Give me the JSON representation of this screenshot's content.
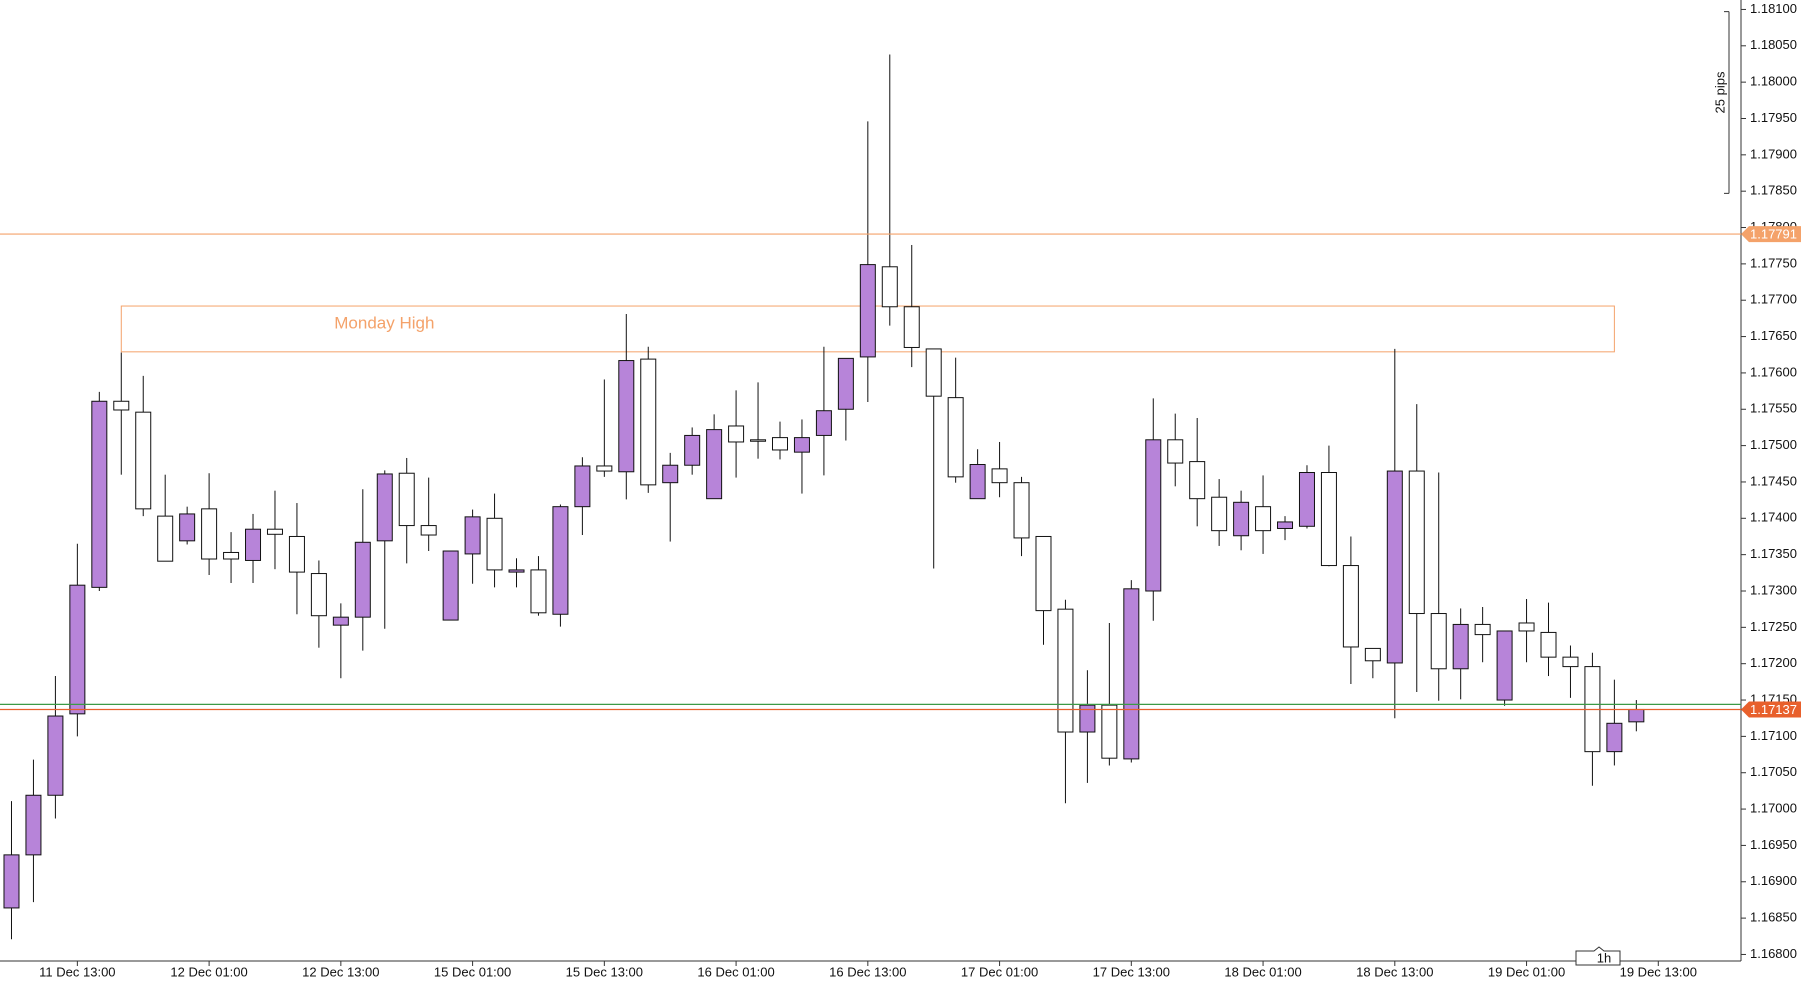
{
  "chart_data": {
    "type": "candlestick",
    "timeframe": "1h",
    "categories": [
      null,
      null,
      null,
      "11 Dec 13:00",
      null,
      null,
      null,
      null,
      null,
      "12 Dec 01:00",
      null,
      null,
      null,
      null,
      null,
      "12 Dec 13:00",
      null,
      null,
      null,
      null,
      null,
      "15 Dec 01:00",
      null,
      null,
      null,
      null,
      null,
      "15 Dec 13:00",
      null,
      null,
      null,
      null,
      null,
      "16 Dec 01:00",
      null,
      null,
      null,
      null,
      null,
      "16 Dec 13:00",
      null,
      null,
      null,
      null,
      null,
      "17 Dec 01:00",
      null,
      null,
      null,
      null,
      null,
      "17 Dec 13:00",
      null,
      null,
      null,
      null,
      null,
      "18 Dec 01:00",
      null,
      null,
      null,
      null,
      null,
      "18 Dec 13:00",
      null,
      null,
      null,
      null,
      null,
      "19 Dec 01:00",
      null,
      null,
      null,
      null,
      null,
      "19 Dec 13:00"
    ],
    "open": [
      1.16864,
      1.16937,
      1.17019,
      1.17131,
      1.17305,
      1.17561,
      1.17546,
      1.17403,
      1.17369,
      1.17413,
      1.17353,
      1.17342,
      1.17385,
      1.17375,
      1.17324,
      1.17253,
      1.17264,
      1.17369,
      1.17462,
      1.1739,
      1.1726,
      1.17351,
      1.174,
      1.17326,
      1.17329,
      1.17268,
      1.17416,
      1.17472,
      1.17464,
      1.17619,
      1.17449,
      1.17473,
      1.17427,
      1.17527,
      1.17508,
      1.17511,
      1.17491,
      1.17514,
      1.1755,
      1.17622,
      1.17746,
      1.17691,
      1.17633,
      1.17566,
      1.17427,
      1.17468,
      1.17449,
      1.17375,
      1.17275,
      1.17106,
      1.17143,
      1.17069,
      1.173,
      1.17508,
      1.17478,
      1.17429,
      1.17376,
      1.17416,
      1.17386,
      1.17389,
      1.17463,
      1.17335,
      1.17221,
      1.17201,
      1.17465,
      1.17269,
      1.17193,
      1.17254,
      1.1715,
      1.17256,
      1.17243,
      1.17209,
      1.17196,
      1.17079,
      1.1712,
      null
    ],
    "high": [
      1.17011,
      1.17068,
      1.17183,
      1.17365,
      1.17574,
      1.17628,
      1.17596,
      1.1746,
      1.17416,
      1.17462,
      1.17381,
      1.17406,
      1.17438,
      1.17421,
      1.17342,
      1.17283,
      1.1744,
      1.17466,
      1.17483,
      1.17456,
      1.17355,
      1.17412,
      1.17434,
      1.17345,
      1.17348,
      1.17419,
      1.17484,
      1.17591,
      1.17681,
      1.17636,
      1.1749,
      1.17525,
      1.17543,
      1.17576,
      1.17587,
      1.17533,
      1.17536,
      1.17636,
      1.1762,
      1.17946,
      1.18038,
      1.17776,
      1.17633,
      1.17621,
      1.17495,
      1.17505,
      1.17457,
      1.17375,
      1.17288,
      1.17191,
      1.17256,
      1.17315,
      1.17565,
      1.17544,
      1.17538,
      1.17454,
      1.17438,
      1.17459,
      1.17403,
      1.17473,
      1.175,
      1.17375,
      1.17221,
      1.17633,
      1.17557,
      1.17463,
      1.17276,
      1.17278,
      1.17245,
      1.17289,
      1.17284,
      1.17225,
      1.17215,
      1.17178,
      1.1715,
      null
    ],
    "low": [
      1.16821,
      1.16872,
      1.16987,
      1.171,
      1.173,
      1.1746,
      1.17403,
      1.17341,
      1.17364,
      1.17322,
      1.17311,
      1.17311,
      1.1733,
      1.17268,
      1.17222,
      1.1718,
      1.17218,
      1.17248,
      1.17338,
      1.17355,
      1.1726,
      1.1731,
      1.17305,
      1.17305,
      1.17266,
      1.17251,
      1.17377,
      1.17457,
      1.17426,
      1.17435,
      1.17368,
      1.1746,
      1.17427,
      1.17456,
      1.17482,
      1.17481,
      1.17434,
      1.17459,
      1.17507,
      1.1756,
      1.17665,
      1.17608,
      1.17331,
      1.17449,
      1.17427,
      1.17429,
      1.17348,
      1.17226,
      1.17008,
      1.17036,
      1.1706,
      1.17064,
      1.17259,
      1.17444,
      1.17389,
      1.17362,
      1.17356,
      1.17351,
      1.1737,
      1.17386,
      1.17334,
      1.17172,
      1.1718,
      1.17125,
      1.17161,
      1.17149,
      1.17151,
      1.17202,
      1.17142,
      1.17202,
      1.17183,
      1.17153,
      1.17032,
      1.1706,
      1.17107,
      null
    ],
    "close": [
      1.16937,
      1.17019,
      1.17128,
      1.17308,
      1.17561,
      1.17549,
      1.17413,
      1.17341,
      1.17406,
      1.17344,
      1.17344,
      1.17385,
      1.17378,
      1.17326,
      1.17266,
      1.17264,
      1.17367,
      1.17461,
      1.1739,
      1.17377,
      1.17355,
      1.17402,
      1.17329,
      1.17329,
      1.1727,
      1.17416,
      1.17472,
      1.17465,
      1.17617,
      1.17446,
      1.17473,
      1.17514,
      1.17522,
      1.17505,
      1.17506,
      1.17494,
      1.17511,
      1.17548,
      1.1762,
      1.17749,
      1.17691,
      1.17635,
      1.17568,
      1.17457,
      1.17474,
      1.17449,
      1.17373,
      1.17273,
      1.17106,
      1.17143,
      1.1707,
      1.17303,
      1.17508,
      1.17476,
      1.17427,
      1.17383,
      1.17422,
      1.17383,
      1.17395,
      1.17463,
      1.17335,
      1.17223,
      1.17204,
      1.17465,
      1.17269,
      1.17193,
      1.17254,
      1.1724,
      1.17245,
      1.17245,
      1.17209,
      1.17196,
      1.17079,
      1.17118,
      1.17137,
      null
    ],
    "up_color": "#b784d9",
    "down_color": "#ffffff",
    "ylim": [
      1.16791,
      1.18113
    ],
    "yticks": [
      {
        "value": 1.168,
        "label": "1.16800"
      },
      {
        "value": 1.1685,
        "label": "1.16850"
      },
      {
        "value": 1.169,
        "label": "1.16900"
      },
      {
        "value": 1.1695,
        "label": "1.16950"
      },
      {
        "value": 1.17,
        "label": "1.17000"
      },
      {
        "value": 1.1705,
        "label": "1.17050"
      },
      {
        "value": 1.171,
        "label": "1.17100"
      },
      {
        "value": 1.1715,
        "label": "1.17150"
      },
      {
        "value": 1.172,
        "label": "1.17200"
      },
      {
        "value": 1.1725,
        "label": "1.17250"
      },
      {
        "value": 1.173,
        "label": "1.17300"
      },
      {
        "value": 1.1735,
        "label": "1.17350"
      },
      {
        "value": 1.174,
        "label": "1.17400"
      },
      {
        "value": 1.1745,
        "label": "1.17450"
      },
      {
        "value": 1.175,
        "label": "1.17500"
      },
      {
        "value": 1.1755,
        "label": "1.17550"
      },
      {
        "value": 1.176,
        "label": "1.17600"
      },
      {
        "value": 1.1765,
        "label": "1.17650"
      },
      {
        "value": 1.177,
        "label": "1.17700"
      },
      {
        "value": 1.1775,
        "label": "1.17750"
      },
      {
        "value": 1.178,
        "label": "1.17800"
      },
      {
        "value": 1.1785,
        "label": "1.17850"
      },
      {
        "value": 1.179,
        "label": "1.17900"
      },
      {
        "value": 1.1795,
        "label": "1.17950"
      },
      {
        "value": 1.18,
        "label": "1.18000"
      },
      {
        "value": 1.1805,
        "label": "1.18050"
      },
      {
        "value": 1.181,
        "label": "1.18100"
      }
    ],
    "hlines": [
      {
        "value": 1.17791,
        "label": "1.17791",
        "color": "#f4a26a"
      },
      {
        "value": 1.17144,
        "color": "#3c9a46"
      },
      {
        "value": 1.17137,
        "label": "1.17137",
        "color": "#e8602c"
      }
    ],
    "zone": {
      "label": "Monday High",
      "x_start": 5,
      "x_end": 73,
      "top": 1.17692,
      "bottom": 1.17629,
      "color": "#f4a26a"
    },
    "ruler": {
      "label": "25 pips",
      "top": 1.18097,
      "bottom": 1.17847
    }
  }
}
